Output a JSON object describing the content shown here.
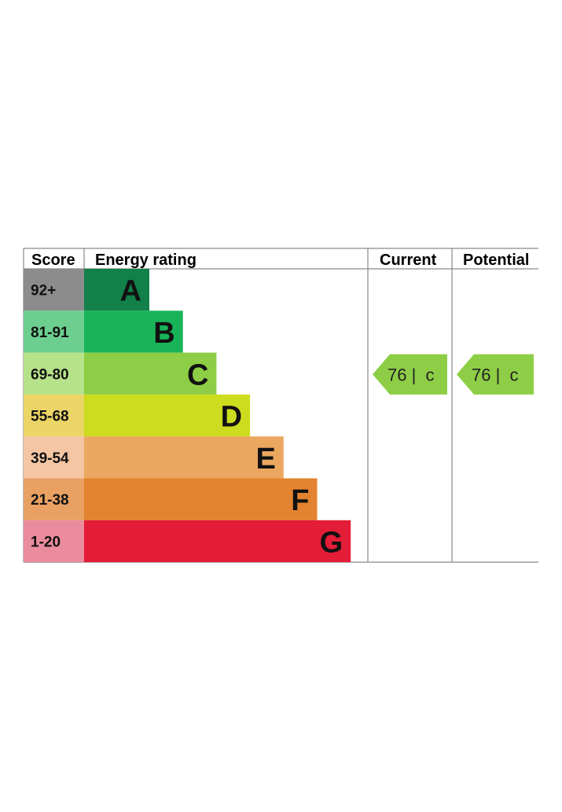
{
  "chart_data": {
    "type": "bar",
    "headers": {
      "score": "Score",
      "rating": "Energy rating",
      "current": "Current",
      "potential": "Potential"
    },
    "bands": [
      {
        "range": "92+",
        "letter": "A",
        "color": "#128049",
        "score_color": "#8c8c8c"
      },
      {
        "range": "81-91",
        "letter": "B",
        "color": "#19b459",
        "score_color": "#6ccf8f"
      },
      {
        "range": "69-80",
        "letter": "C",
        "color": "#8dce46",
        "score_color": "#b6e28a"
      },
      {
        "range": "55-68",
        "letter": "D",
        "color": "#ccdc1e",
        "score_color": "#ebd566"
      },
      {
        "range": "39-54",
        "letter": "E",
        "color": "#eba760",
        "score_color": "#f4c6a3"
      },
      {
        "range": "21-38",
        "letter": "F",
        "color": "#e4832f",
        "score_color": "#e9a063"
      },
      {
        "range": "1-20",
        "letter": "G",
        "color": "#e31d38",
        "score_color": "#ea8c9e"
      }
    ],
    "current": {
      "value": 76,
      "letter": "c",
      "label": "76 |  c",
      "band": "C",
      "color": "#8dce46"
    },
    "potential": {
      "value": 76,
      "letter": "c",
      "label": "76 |  c",
      "band": "C",
      "color": "#8dce46"
    }
  }
}
